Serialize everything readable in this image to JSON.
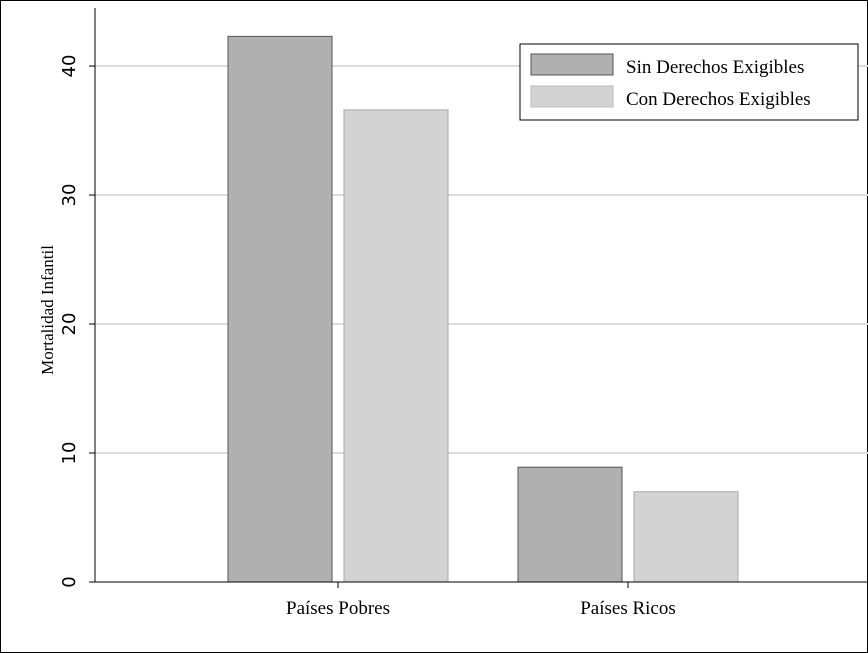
{
  "chart_data": {
    "type": "bar",
    "title": "",
    "xlabel": "",
    "ylabel": "Mortalidad Infantil",
    "categories": [
      "Países Pobres",
      "Países Ricos"
    ],
    "series": [
      {
        "name": "Sin Derechos Exigibles",
        "values": [
          42.3,
          8.9
        ],
        "color": "#b0b0b0"
      },
      {
        "name": "Con Derechos Exigibles",
        "values": [
          36.6,
          7.0
        ],
        "color": "#d3d3d3"
      }
    ],
    "ylim": [
      0,
      44.5
    ],
    "yticks": [
      0,
      10,
      20,
      30,
      40
    ],
    "grid": true,
    "legend_position": "top-right",
    "colors": {
      "background": "#ffffff",
      "axis": "#000000",
      "grid": "#dcdcdc",
      "bar_border": "#555555"
    }
  }
}
